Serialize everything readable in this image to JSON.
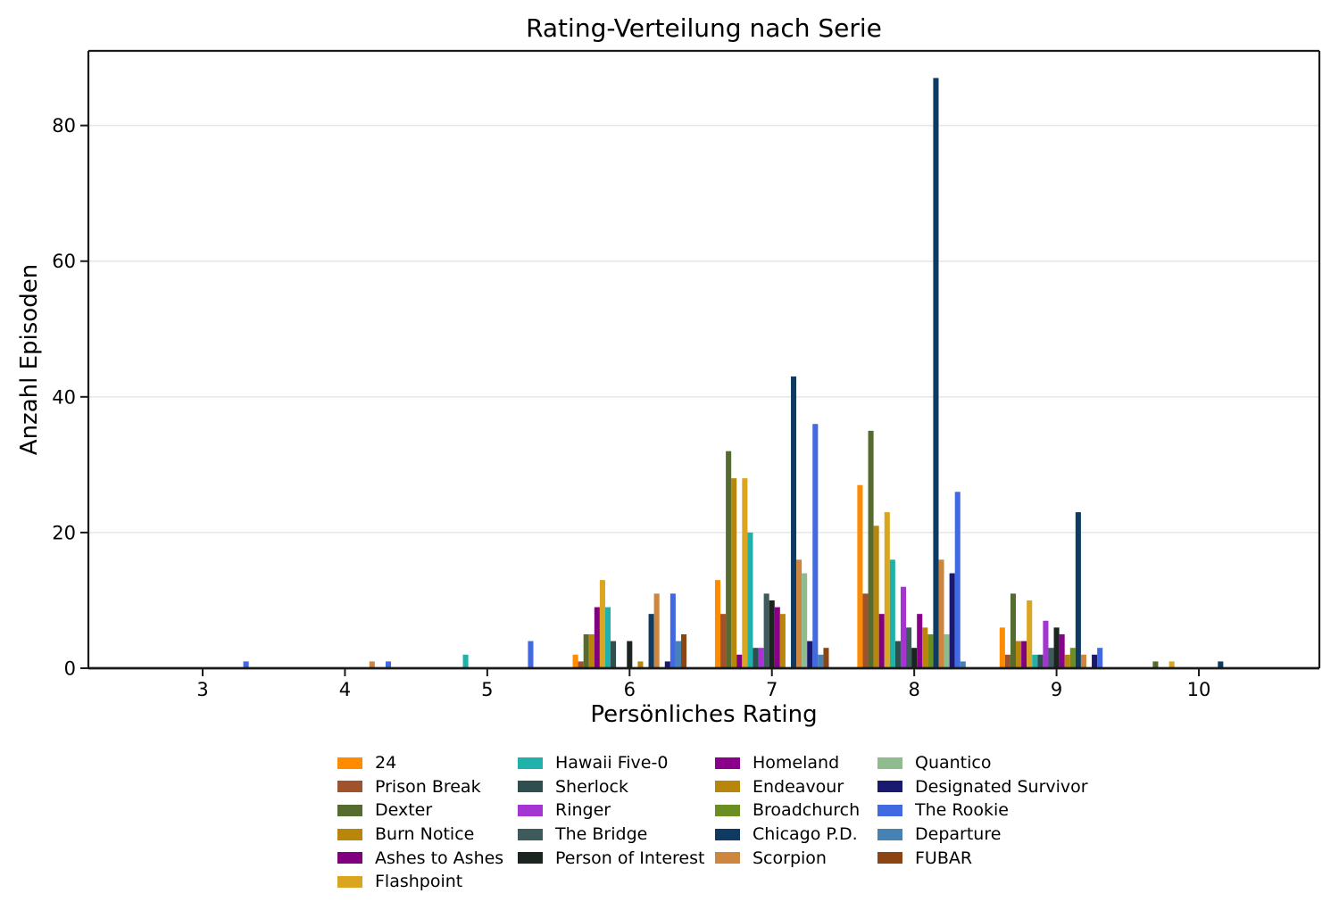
{
  "figure": {
    "background": "#ffffff",
    "text_color": "#000000",
    "grid_color": "#e6e6e6",
    "spine_color": "#1a1a1a"
  },
  "chart_data": {
    "type": "bar",
    "title": "Rating-Verteilung nach Serie",
    "xlabel": "Persönliches Rating",
    "ylabel": "Anzahl Episoden",
    "categories": [
      3,
      4,
      5,
      6,
      7,
      8,
      9,
      10
    ],
    "x_tick_labels": [
      "3",
      "4",
      "5",
      "6",
      "7",
      "8",
      "9",
      "10"
    ],
    "y_ticks": [
      0,
      20,
      40,
      60,
      80
    ],
    "ylim": [
      0,
      91
    ],
    "xlim": [
      2.2,
      10.85
    ],
    "grid": "horizontal-y-only",
    "bar_group_width": 0.8,
    "legend": {
      "position": "bottom",
      "columns": 4,
      "column_split": [
        6,
        5,
        5,
        5
      ],
      "frame": false
    },
    "series": [
      {
        "name": "24",
        "color": "#FF8C00",
        "values": [
          0,
          0,
          0,
          2,
          13,
          27,
          6,
          0
        ]
      },
      {
        "name": "Prison Break",
        "color": "#A0522D",
        "values": [
          0,
          0,
          0,
          1,
          8,
          11,
          2,
          0
        ]
      },
      {
        "name": "Dexter",
        "color": "#556B2F",
        "values": [
          0,
          0,
          0,
          5,
          32,
          35,
          11,
          1
        ]
      },
      {
        "name": "Burn Notice",
        "color": "#B8860B",
        "values": [
          0,
          0,
          0,
          5,
          28,
          21,
          4,
          0
        ]
      },
      {
        "name": "Ashes to Ashes",
        "color": "#800080",
        "values": [
          0,
          0,
          0,
          9,
          2,
          8,
          4,
          0
        ]
      },
      {
        "name": "Flashpoint",
        "color": "#DAA520",
        "values": [
          0,
          0,
          0,
          13,
          28,
          23,
          10,
          1
        ]
      },
      {
        "name": "Hawaii Five-0",
        "color": "#20B2AA",
        "values": [
          0,
          0,
          2,
          9,
          20,
          16,
          2,
          0
        ]
      },
      {
        "name": "Sherlock",
        "color": "#2F4F4F",
        "values": [
          0,
          0,
          0,
          4,
          3,
          4,
          2,
          0
        ]
      },
      {
        "name": "Ringer",
        "color": "#A435D2",
        "values": [
          0,
          0,
          0,
          0,
          3,
          12,
          7,
          0
        ]
      },
      {
        "name": "The Bridge",
        "color": "#3D5B5B",
        "values": [
          0,
          0,
          0,
          0,
          11,
          6,
          3,
          0
        ]
      },
      {
        "name": "Person of Interest",
        "color": "#1C2420",
        "values": [
          0,
          0,
          0,
          4,
          10,
          3,
          6,
          0
        ]
      },
      {
        "name": "Homeland",
        "color": "#8B008B",
        "values": [
          0,
          0,
          0,
          0,
          9,
          8,
          5,
          0
        ]
      },
      {
        "name": "Endeavour",
        "color": "#B8860B",
        "values": [
          0,
          0,
          0,
          1,
          8,
          6,
          2,
          0
        ]
      },
      {
        "name": "Broadchurch",
        "color": "#6B8E23",
        "values": [
          0,
          0,
          0,
          0,
          0,
          5,
          3,
          0
        ]
      },
      {
        "name": "Chicago P.D.",
        "color": "#0F3B63",
        "values": [
          0,
          0,
          0,
          8,
          43,
          87,
          23,
          1
        ]
      },
      {
        "name": "Scorpion",
        "color": "#CD853F",
        "values": [
          0,
          1,
          0,
          11,
          16,
          16,
          2,
          0
        ]
      },
      {
        "name": "Quantico",
        "color": "#8FBC8F",
        "values": [
          0,
          0,
          0,
          0,
          14,
          5,
          0,
          0
        ]
      },
      {
        "name": "Designated Survivor",
        "color": "#191970",
        "values": [
          0,
          0,
          0,
          1,
          4,
          14,
          2,
          0
        ]
      },
      {
        "name": "The Rookie",
        "color": "#4169E1",
        "values": [
          1,
          1,
          4,
          11,
          36,
          26,
          3,
          0
        ]
      },
      {
        "name": "Departure",
        "color": "#4682B4",
        "values": [
          0,
          0,
          0,
          4,
          2,
          1,
          0,
          0
        ]
      },
      {
        "name": "FUBAR",
        "color": "#8B4513",
        "values": [
          0,
          0,
          0,
          5,
          3,
          0,
          0,
          0
        ]
      }
    ]
  }
}
